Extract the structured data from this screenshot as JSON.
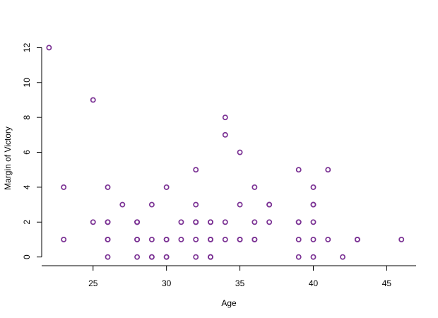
{
  "chart_data": {
    "type": "scatter",
    "title": "",
    "xlabel": "Age",
    "ylabel": "Margin of Victory",
    "xlim": [
      21.5,
      47.0
    ],
    "ylim": [
      -0.5,
      12.3
    ],
    "xticks": [
      25,
      30,
      35,
      40,
      45
    ],
    "yticks": [
      0,
      2,
      4,
      6,
      8,
      10,
      12
    ],
    "grid": false,
    "marker_color": "#7B3294",
    "series": [
      {
        "points": [
          {
            "x": 22,
            "y": 12
          },
          {
            "x": 23,
            "y": 4
          },
          {
            "x": 23,
            "y": 1
          },
          {
            "x": 25,
            "y": 9
          },
          {
            "x": 25,
            "y": 2
          },
          {
            "x": 26,
            "y": 4
          },
          {
            "x": 26,
            "y": 2
          },
          {
            "x": 26,
            "y": 2
          },
          {
            "x": 26,
            "y": 1
          },
          {
            "x": 26,
            "y": 1
          },
          {
            "x": 26,
            "y": 0
          },
          {
            "x": 27,
            "y": 3
          },
          {
            "x": 28,
            "y": 2
          },
          {
            "x": 28,
            "y": 2
          },
          {
            "x": 28,
            "y": 2
          },
          {
            "x": 28,
            "y": 1
          },
          {
            "x": 28,
            "y": 1
          },
          {
            "x": 28,
            "y": 0
          },
          {
            "x": 29,
            "y": 3
          },
          {
            "x": 29,
            "y": 1
          },
          {
            "x": 29,
            "y": 0
          },
          {
            "x": 29,
            "y": 0
          },
          {
            "x": 30,
            "y": 4
          },
          {
            "x": 30,
            "y": 1
          },
          {
            "x": 30,
            "y": 1
          },
          {
            "x": 30,
            "y": 0
          },
          {
            "x": 30,
            "y": 0
          },
          {
            "x": 31,
            "y": 2
          },
          {
            "x": 31,
            "y": 1
          },
          {
            "x": 32,
            "y": 5
          },
          {
            "x": 32,
            "y": 3
          },
          {
            "x": 32,
            "y": 2
          },
          {
            "x": 32,
            "y": 2
          },
          {
            "x": 32,
            "y": 1
          },
          {
            "x": 32,
            "y": 0
          },
          {
            "x": 33,
            "y": 2
          },
          {
            "x": 33,
            "y": 2
          },
          {
            "x": 33,
            "y": 1
          },
          {
            "x": 33,
            "y": 1
          },
          {
            "x": 33,
            "y": 0
          },
          {
            "x": 33,
            "y": 0
          },
          {
            "x": 33,
            "y": 0
          },
          {
            "x": 34,
            "y": 8
          },
          {
            "x": 34,
            "y": 7
          },
          {
            "x": 34,
            "y": 2
          },
          {
            "x": 34,
            "y": 1
          },
          {
            "x": 35,
            "y": 6
          },
          {
            "x": 35,
            "y": 3
          },
          {
            "x": 35,
            "y": 1
          },
          {
            "x": 35,
            "y": 1
          },
          {
            "x": 36,
            "y": 4
          },
          {
            "x": 36,
            "y": 2
          },
          {
            "x": 36,
            "y": 1
          },
          {
            "x": 36,
            "y": 1
          },
          {
            "x": 37,
            "y": 3
          },
          {
            "x": 37,
            "y": 3
          },
          {
            "x": 37,
            "y": 2
          },
          {
            "x": 39,
            "y": 5
          },
          {
            "x": 39,
            "y": 2
          },
          {
            "x": 39,
            "y": 2
          },
          {
            "x": 39,
            "y": 1
          },
          {
            "x": 39,
            "y": 0
          },
          {
            "x": 40,
            "y": 4
          },
          {
            "x": 40,
            "y": 3
          },
          {
            "x": 40,
            "y": 3
          },
          {
            "x": 40,
            "y": 2
          },
          {
            "x": 40,
            "y": 1
          },
          {
            "x": 40,
            "y": 0
          },
          {
            "x": 41,
            "y": 5
          },
          {
            "x": 41,
            "y": 1
          },
          {
            "x": 42,
            "y": 0
          },
          {
            "x": 43,
            "y": 1
          },
          {
            "x": 43,
            "y": 1
          },
          {
            "x": 46,
            "y": 1
          }
        ]
      }
    ]
  }
}
